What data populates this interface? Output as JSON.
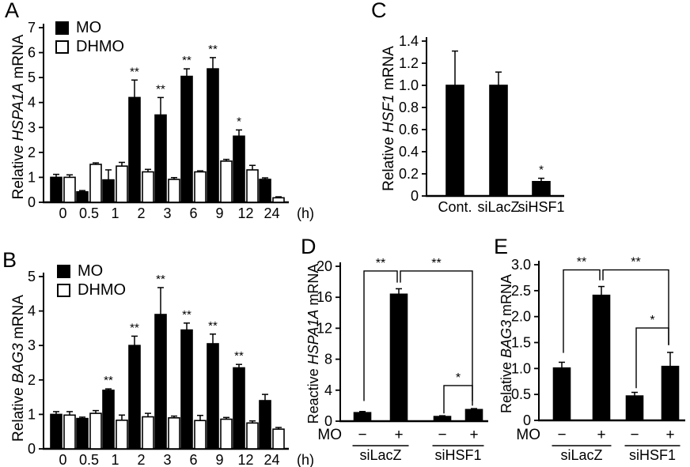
{
  "figure": {
    "background": "#ffffff",
    "colors": {
      "bar_filled": "#000000",
      "bar_open": "#ffffff",
      "axis": "#000000"
    }
  },
  "chart_data": [
    {
      "id": "A",
      "panel_letter": "A",
      "type": "grouped_bar",
      "ylabel": "Relative HSPA1A mRNA",
      "ylabel_parts": {
        "prefix": "Relative ",
        "gene": "HSPA1A",
        "suffix": " mRNA"
      },
      "x_unit": "(h)",
      "categories": [
        "0",
        "0.5",
        "1",
        "2",
        "3",
        "6",
        "9",
        "12",
        "24"
      ],
      "ylim": [
        0,
        7
      ],
      "yticks": [
        "0",
        "1",
        "2",
        "3",
        "4",
        "5",
        "6",
        "7"
      ],
      "legend_position": "top-left",
      "series": [
        {
          "name": "MO",
          "fill": "#000000",
          "values": [
            1.0,
            0.42,
            0.9,
            4.2,
            3.5,
            5.05,
            5.35,
            2.65,
            0.92
          ],
          "errors": [
            0.12,
            0.05,
            0.4,
            0.7,
            0.7,
            0.3,
            0.45,
            0.25,
            0.06
          ],
          "sig": [
            "",
            "",
            "",
            "**",
            "**",
            "**",
            "**",
            "*",
            ""
          ]
        },
        {
          "name": "DHMO",
          "fill": "#ffffff",
          "values": [
            1.0,
            1.52,
            1.45,
            1.22,
            0.92,
            1.22,
            1.65,
            1.3,
            0.18
          ],
          "errors": [
            0.1,
            0.06,
            0.15,
            0.1,
            0.07,
            0.04,
            0.07,
            0.18,
            0.04
          ],
          "sig": [
            "",
            "",
            "",
            "",
            "",
            "",
            "",
            "",
            ""
          ]
        }
      ]
    },
    {
      "id": "B",
      "panel_letter": "B",
      "type": "grouped_bar",
      "ylabel": "Relative BAG3 mRNA",
      "ylabel_parts": {
        "prefix": "Relative ",
        "gene": "BAG3",
        "suffix": " mRNA"
      },
      "x_unit": "(h)",
      "categories": [
        "0",
        "0.5",
        "1",
        "2",
        "3",
        "6",
        "9",
        "12",
        "24"
      ],
      "ylim": [
        0,
        5
      ],
      "yticks": [
        "0",
        "1",
        "2",
        "3",
        "4",
        "5"
      ],
      "legend_position": "top-left",
      "series": [
        {
          "name": "MO",
          "fill": "#000000",
          "values": [
            1.0,
            0.88,
            1.7,
            3.0,
            3.9,
            3.45,
            3.05,
            2.35,
            1.4
          ],
          "errors": [
            0.08,
            0.04,
            0.04,
            0.27,
            0.78,
            0.2,
            0.28,
            0.1,
            0.18
          ],
          "sig": [
            "",
            "",
            "**",
            "**",
            "**",
            "**",
            "**",
            "**",
            ""
          ]
        },
        {
          "name": "DHMO",
          "fill": "#ffffff",
          "values": [
            0.98,
            1.03,
            0.83,
            0.93,
            0.9,
            0.82,
            0.86,
            0.75,
            0.57
          ],
          "errors": [
            0.1,
            0.08,
            0.15,
            0.1,
            0.05,
            0.15,
            0.05,
            0.06,
            0.05
          ],
          "sig": [
            "",
            "",
            "",
            "",
            "",
            "",
            "",
            "",
            ""
          ]
        }
      ]
    },
    {
      "id": "C",
      "panel_letter": "C",
      "type": "bar",
      "ylabel": "Relative HSF1 mRNA",
      "ylabel_parts": {
        "prefix": "Relative ",
        "gene": "HSF1",
        "suffix": " mRNA"
      },
      "categories": [
        "Cont.",
        "siLacZ",
        "siHSF1"
      ],
      "ylim": [
        0,
        1.4
      ],
      "yticks": [
        "0",
        "0.2",
        "0.4",
        "0.6",
        "0.8",
        "1.0",
        "1.2",
        "1.4"
      ],
      "series": [
        {
          "name": "HSF1",
          "fill": "#000000",
          "values": [
            1.0,
            1.0,
            0.13
          ],
          "errors": [
            0.31,
            0.12,
            0.03
          ],
          "sig": [
            "",
            "",
            "*"
          ]
        }
      ]
    },
    {
      "id": "D",
      "panel_letter": "D",
      "type": "bar",
      "ylabel": "Reactive HSPA1A mRNA",
      "ylabel_parts": {
        "prefix": "Reactive ",
        "gene": "HSPA1A",
        "suffix": " mRNA"
      },
      "row_label": "MO",
      "categories": [
        "−",
        "+",
        "−",
        "+"
      ],
      "groups": [
        {
          "label": "siLacZ",
          "span": [
            0,
            1
          ]
        },
        {
          "label": "siHSF1",
          "span": [
            2,
            3
          ]
        }
      ],
      "ylim": [
        0,
        20
      ],
      "yticks": [
        "0",
        "4",
        "8",
        "12",
        "16",
        "20"
      ],
      "series": [
        {
          "name": "HSPA1A",
          "fill": "#000000",
          "values": [
            1.1,
            16.4,
            0.6,
            1.5
          ],
          "errors": [
            0.15,
            0.7,
            0.1,
            0.12
          ],
          "sig": [
            "",
            "",
            "",
            ""
          ]
        }
      ],
      "brackets": [
        {
          "from": 0,
          "to": 1,
          "top": 19.4,
          "drop_from": 2.6,
          "drop_to": 17.9,
          "label": "**"
        },
        {
          "from": 1,
          "to": 3,
          "top": 19.4,
          "drop_from": 17.9,
          "drop_to": 2.6,
          "label": "**"
        },
        {
          "from": 2,
          "to": 3,
          "top": 4.6,
          "drop_from": 1.0,
          "drop_to": 2.0,
          "label": "*"
        }
      ]
    },
    {
      "id": "E",
      "panel_letter": "E",
      "type": "bar",
      "ylabel": "Relative BAG3 mRNA",
      "ylabel_parts": {
        "prefix": "Relative ",
        "gene": "BAG3",
        "suffix": " mRNA"
      },
      "row_label": "MO",
      "categories": [
        "−",
        "+",
        "−",
        "+"
      ],
      "groups": [
        {
          "label": "siLacZ",
          "span": [
            0,
            1
          ]
        },
        {
          "label": "siHSF1",
          "span": [
            2,
            3
          ]
        }
      ],
      "ylim": [
        0,
        3
      ],
      "yticks": [
        "0",
        "0.5",
        "1.0",
        "1.5",
        "2.0",
        "2.5",
        "3.0"
      ],
      "series": [
        {
          "name": "BAG3",
          "fill": "#000000",
          "values": [
            1.01,
            2.41,
            0.47,
            1.04
          ],
          "errors": [
            0.11,
            0.17,
            0.07,
            0.27
          ],
          "sig": [
            "",
            "",
            "",
            ""
          ]
        }
      ],
      "brackets": [
        {
          "from": 0,
          "to": 1,
          "top": 2.9,
          "drop_from": 1.3,
          "drop_to": 2.7,
          "label": "**"
        },
        {
          "from": 1,
          "to": 3,
          "top": 2.9,
          "drop_from": 2.7,
          "drop_to": 1.45,
          "label": "**"
        },
        {
          "from": 2,
          "to": 3,
          "top": 1.78,
          "drop_from": 0.62,
          "drop_to": 1.45,
          "label": "*"
        }
      ]
    }
  ]
}
